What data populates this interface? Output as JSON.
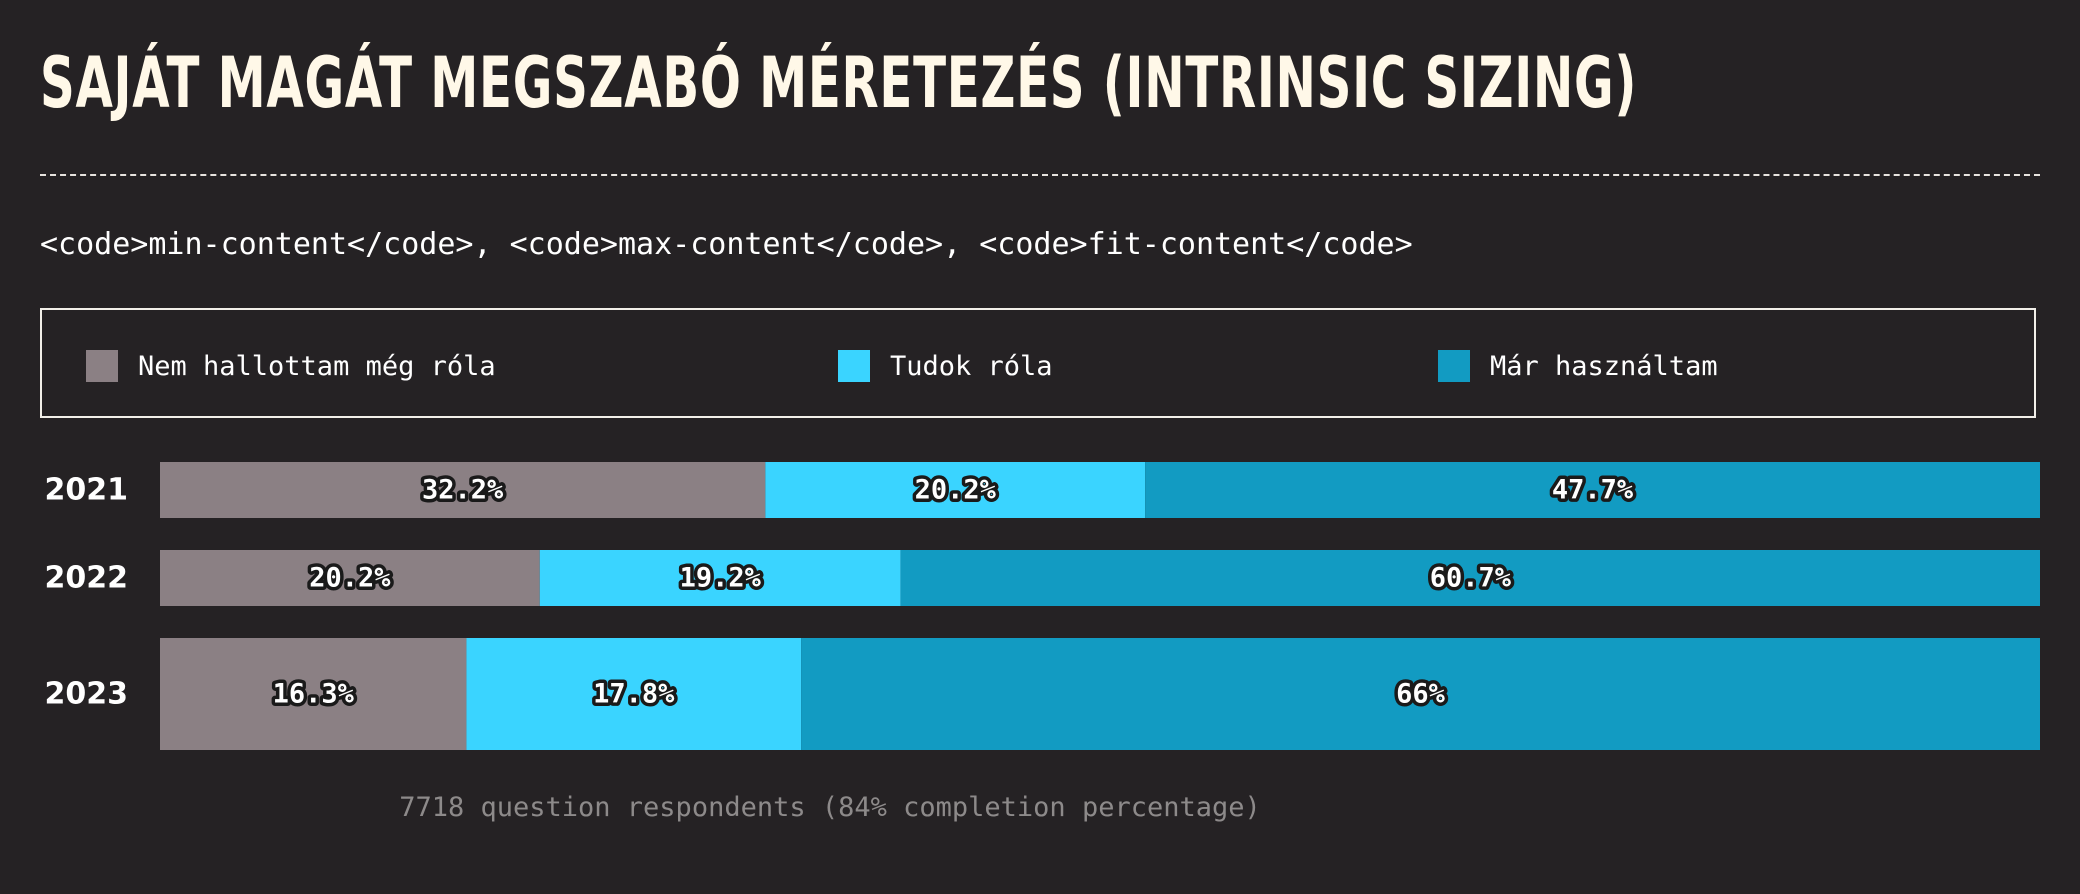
{
  "header": {
    "title": "SAJÁT MAGÁT MEGSZABÓ MÉRETEZÉS (INTRINSIC SIZING)",
    "subtitle": "<code>min-content</code>, <code>max-content</code>, <code>fit-content</code>"
  },
  "legend": {
    "items": [
      {
        "label": "Nem hallottam még róla",
        "color": "#8b8084"
      },
      {
        "label": "Tudok róla",
        "color": "#3ad4ff"
      },
      {
        "label": "Már használtam",
        "color": "#129bc2"
      }
    ]
  },
  "chart_data": {
    "type": "bar",
    "orientation": "horizontal",
    "stacked": true,
    "categories": [
      "2021",
      "2022",
      "2023"
    ],
    "series": [
      {
        "name": "Nem hallottam még róla",
        "color": "#8b8084",
        "values": [
          32.2,
          20.2,
          16.3
        ],
        "labels": [
          "32.2%",
          "20.2%",
          "16.3%"
        ]
      },
      {
        "name": "Tudok róla",
        "color": "#3ad4ff",
        "values": [
          20.2,
          19.2,
          17.8
        ],
        "labels": [
          "20.2%",
          "19.2%",
          "17.8%"
        ]
      },
      {
        "name": "Már használtam",
        "color": "#129bc2",
        "values": [
          47.7,
          60.7,
          66
        ],
        "labels": [
          "47.7%",
          "60.7%",
          "66%"
        ]
      }
    ],
    "xlim": [
      0,
      100
    ],
    "grid": false,
    "legend_position": "top"
  },
  "footer": {
    "note": "7718 question respondents (84% completion percentage)"
  }
}
